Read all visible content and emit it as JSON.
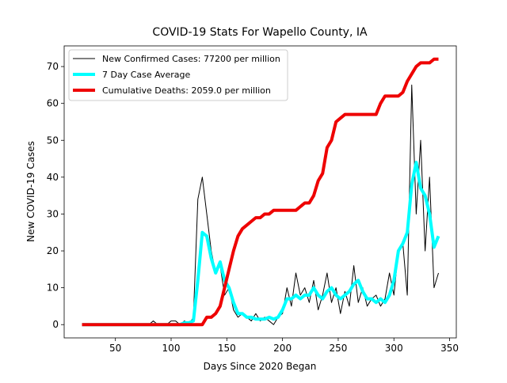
{
  "chart_data": {
    "type": "line",
    "title": "COVID-19 Stats For Wapello County, IA",
    "xlabel": "Days Since 2020 Began",
    "ylabel": "New COVID-19 Cases",
    "x": [
      20,
      24,
      28,
      32,
      36,
      40,
      44,
      48,
      52,
      56,
      60,
      64,
      68,
      72,
      76,
      80,
      84,
      88,
      92,
      96,
      100,
      104,
      108,
      112,
      116,
      120,
      124,
      128,
      132,
      136,
      140,
      144,
      148,
      152,
      156,
      160,
      164,
      168,
      172,
      176,
      180,
      184,
      188,
      192,
      196,
      200,
      204,
      208,
      212,
      216,
      220,
      224,
      228,
      232,
      236,
      240,
      244,
      248,
      252,
      256,
      260,
      264,
      268,
      272,
      276,
      280,
      284,
      288,
      292,
      296,
      300,
      304,
      308,
      312,
      316,
      320,
      324,
      328,
      332,
      336,
      340
    ],
    "series": [
      {
        "name": "New Confirmed Cases: 77200 per million",
        "color": "#000000",
        "width": 1,
        "values": [
          0,
          0,
          0,
          0,
          0,
          0,
          0,
          0,
          0,
          0,
          0,
          0,
          0,
          0,
          0,
          0,
          1,
          0,
          0,
          0,
          1,
          1,
          0,
          1,
          0,
          2,
          34,
          40,
          30,
          20,
          14,
          16,
          8,
          10,
          4,
          2,
          3,
          2,
          1,
          3,
          1,
          2,
          1,
          0,
          2,
          3,
          10,
          5,
          14,
          8,
          10,
          6,
          12,
          4,
          8,
          14,
          6,
          10,
          3,
          9,
          5,
          16,
          6,
          10,
          5,
          7,
          8,
          5,
          7,
          14,
          8,
          20,
          22,
          8,
          65,
          30,
          50,
          20,
          40,
          10,
          14
        ]
      },
      {
        "name": "7 Day Case Average",
        "color": "#00ffff",
        "width": 4,
        "values": [
          0,
          0,
          0,
          0,
          0,
          0,
          0,
          0,
          0,
          0,
          0,
          0,
          0,
          0,
          0,
          0,
          0,
          0,
          0,
          0,
          0,
          0,
          0,
          0.5,
          0.5,
          1,
          12,
          25,
          24,
          18,
          14,
          17,
          12,
          10,
          6,
          3,
          3,
          2,
          2,
          1.5,
          1.5,
          1.5,
          2,
          1.5,
          2,
          4,
          7,
          7,
          8,
          7,
          8,
          8,
          10,
          8,
          7,
          9,
          10,
          8,
          7,
          8,
          9,
          11,
          12,
          9,
          7,
          7,
          6,
          7,
          6,
          8,
          12,
          20,
          22,
          25,
          38,
          44,
          37,
          35,
          30,
          21,
          24
        ]
      },
      {
        "name": "Cumulative Deaths: 2059.0 per million",
        "color": "#ee0000",
        "width": 4,
        "values": [
          0,
          0,
          0,
          0,
          0,
          0,
          0,
          0,
          0,
          0,
          0,
          0,
          0,
          0,
          0,
          0,
          0,
          0,
          0,
          0,
          0,
          0,
          0,
          0,
          0,
          0,
          0,
          0,
          2,
          2,
          3,
          5,
          10,
          15,
          20,
          24,
          26,
          27,
          28,
          29,
          29,
          30,
          30,
          31,
          31,
          31,
          31,
          31,
          31,
          32,
          33,
          33,
          35,
          39,
          41,
          48,
          50,
          55,
          56,
          57,
          57,
          57,
          57,
          57,
          57,
          57,
          57,
          60,
          62,
          62,
          62,
          62,
          63,
          66,
          68,
          70,
          71,
          71,
          71,
          72,
          72
        ]
      }
    ],
    "xlim": [
      4,
      356
    ],
    "ylim": [
      -3.6,
      75.6
    ],
    "xticks": [
      50,
      100,
      150,
      200,
      250,
      300,
      350
    ],
    "yticks": [
      0,
      10,
      20,
      30,
      40,
      50,
      60,
      70
    ],
    "legend": "upper left"
  }
}
